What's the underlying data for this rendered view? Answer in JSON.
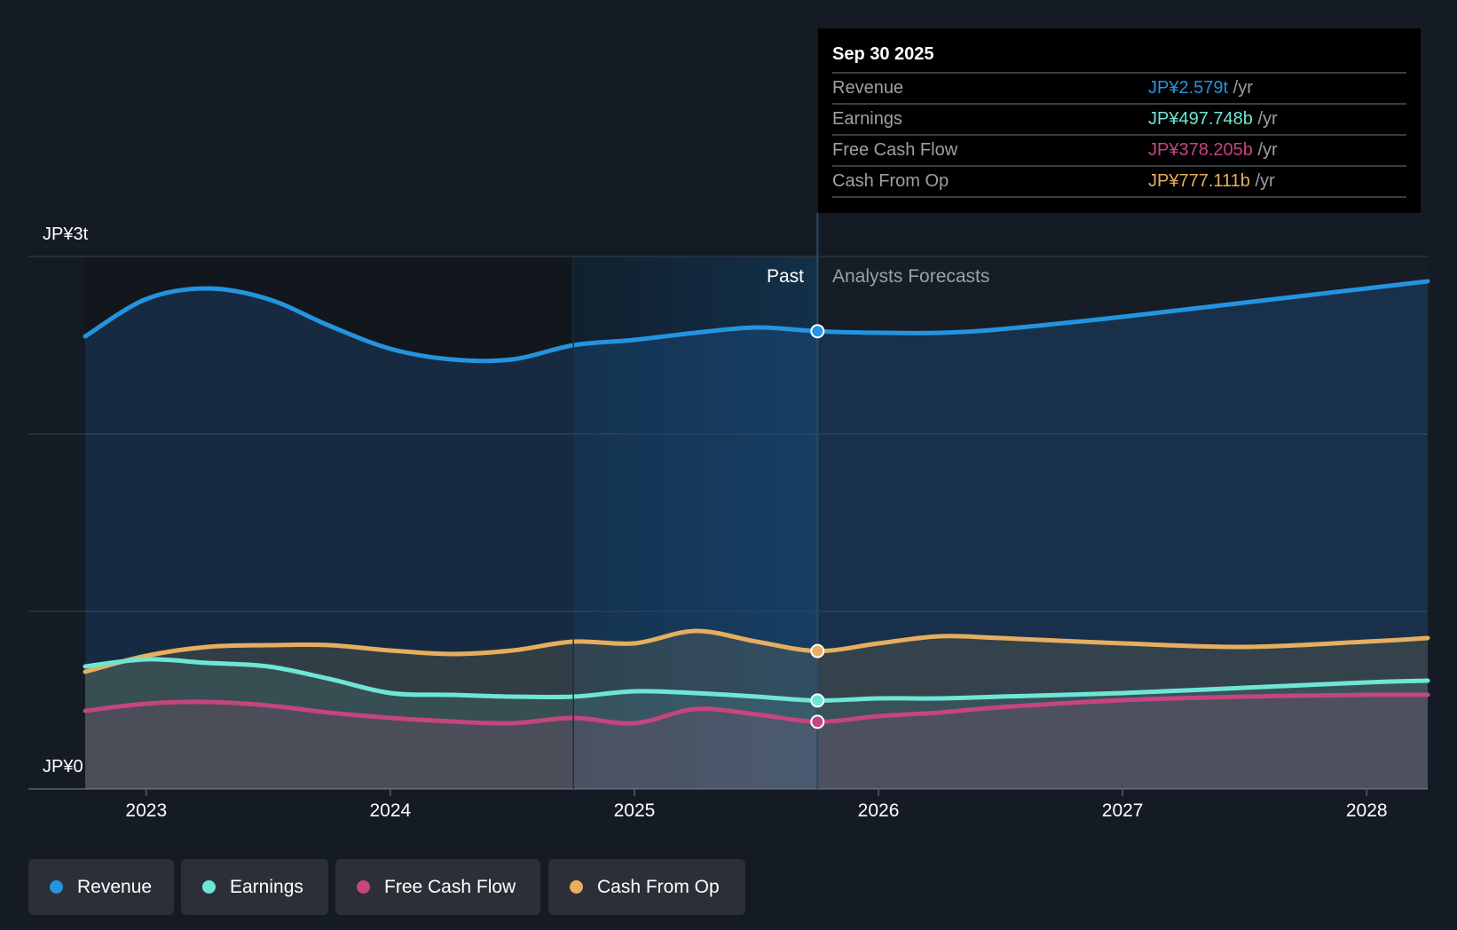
{
  "colors": {
    "revenue": "#2394df",
    "earnings": "#6ee6d6",
    "fcf": "#c5457e",
    "cfo": "#e6ae5e"
  },
  "tooltip": {
    "date": "Sep 30 2025",
    "unit": "/yr",
    "rows": [
      {
        "label": "Revenue",
        "value": "JP¥2.579t"
      },
      {
        "label": "Earnings",
        "value": "JP¥497.748b"
      },
      {
        "label": "Free Cash Flow",
        "value": "JP¥378.205b"
      },
      {
        "label": "Cash From Op",
        "value": "JP¥777.111b"
      }
    ]
  },
  "segments": {
    "past": "Past",
    "forecast": "Analysts Forecasts"
  },
  "legend": [
    "Revenue",
    "Earnings",
    "Free Cash Flow",
    "Cash From Op"
  ],
  "chart_data": {
    "type": "line",
    "yunit": "JP¥ trillion",
    "ylim": [
      0,
      3
    ],
    "ytick_labels": [
      "JP¥3t",
      "JP¥0"
    ],
    "xlim": [
      2022.75,
      2028.25
    ],
    "x_ticks": [
      2023,
      2024,
      2025,
      2026,
      2027,
      2028
    ],
    "past_end": 2025.75,
    "highlight_start": 2024.75,
    "x": [
      2022.75,
      2023.0,
      2023.25,
      2023.5,
      2023.75,
      2024.0,
      2024.25,
      2024.5,
      2024.75,
      2025.0,
      2025.25,
      2025.5,
      2025.75,
      2026.0,
      2026.25,
      2026.5,
      2027.0,
      2027.5,
      2028.0,
      2028.25
    ],
    "series": [
      {
        "name": "Revenue",
        "key": "revenue",
        "values": [
          2.55,
          2.76,
          2.82,
          2.76,
          2.61,
          2.48,
          2.42,
          2.42,
          2.5,
          2.53,
          2.57,
          2.6,
          2.579,
          2.57,
          2.57,
          2.59,
          2.66,
          2.74,
          2.82,
          2.86
        ]
      },
      {
        "name": "Cash From Op",
        "key": "cfo",
        "values": [
          0.66,
          0.75,
          0.8,
          0.81,
          0.81,
          0.78,
          0.76,
          0.78,
          0.83,
          0.82,
          0.89,
          0.83,
          0.777,
          0.82,
          0.86,
          0.85,
          0.82,
          0.8,
          0.83,
          0.85
        ]
      },
      {
        "name": "Earnings",
        "key": "earnings",
        "values": [
          0.69,
          0.73,
          0.71,
          0.69,
          0.62,
          0.54,
          0.53,
          0.52,
          0.52,
          0.55,
          0.54,
          0.52,
          0.498,
          0.51,
          0.51,
          0.52,
          0.54,
          0.57,
          0.6,
          0.61
        ]
      },
      {
        "name": "Free Cash Flow",
        "key": "fcf",
        "values": [
          0.44,
          0.48,
          0.49,
          0.47,
          0.43,
          0.4,
          0.38,
          0.37,
          0.4,
          0.37,
          0.45,
          0.42,
          0.378,
          0.41,
          0.43,
          0.46,
          0.5,
          0.52,
          0.53,
          0.53
        ]
      }
    ]
  }
}
